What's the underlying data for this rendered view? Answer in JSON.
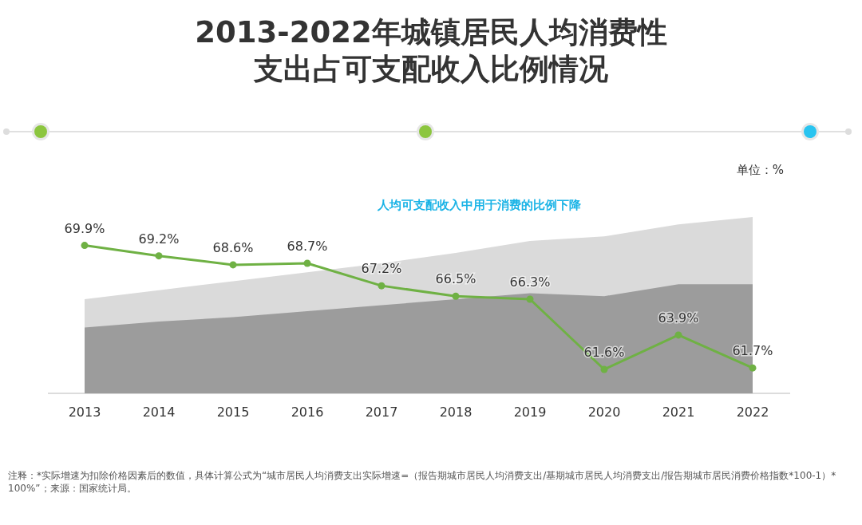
{
  "chart_data": {
    "type": "line",
    "title": "2013-2022年城镇居民人均消费性支出占可支配收入比例情况",
    "categories": [
      "2013",
      "2014",
      "2015",
      "2016",
      "2017",
      "2018",
      "2019",
      "2020",
      "2021",
      "2022"
    ],
    "series": [
      {
        "type": "area",
        "color": "#dadada",
        "values": [
          66.3,
          66.9,
          67.5,
          68.1,
          68.7,
          69.4,
          70.2,
          70.5,
          71.3,
          71.8
        ]
      },
      {
        "type": "area",
        "color": "#9c9c9c",
        "values": [
          64.4,
          64.8,
          65.1,
          65.5,
          65.9,
          66.3,
          66.7,
          66.5,
          67.3,
          67.3
        ]
      },
      {
        "color": "#6fb144",
        "marker": "circle",
        "values": [
          69.9,
          69.2,
          68.6,
          68.7,
          67.2,
          66.5,
          66.3,
          61.6,
          63.9,
          61.7
        ],
        "value_labels": [
          "69.9%",
          "69.2%",
          "68.6%",
          "68.7%",
          "67.2%",
          "66.5%",
          "66.3%",
          "61.6%",
          "63.9%",
          "61.7%"
        ]
      }
    ],
    "annotations": [
      "单位：%",
      "人均可支配收入中用于消费的比例下降",
      "注释：*实际增速为扣除价格因素后的数值，具体计算公式为“城市居民人均消费支出实际增速=（报告期城市居民人均消费支出/基期城市居民人均消费支出/报告期城市居民消费价格指数*100-1）*100%”；来源：国家统计局。"
    ]
  }
}
